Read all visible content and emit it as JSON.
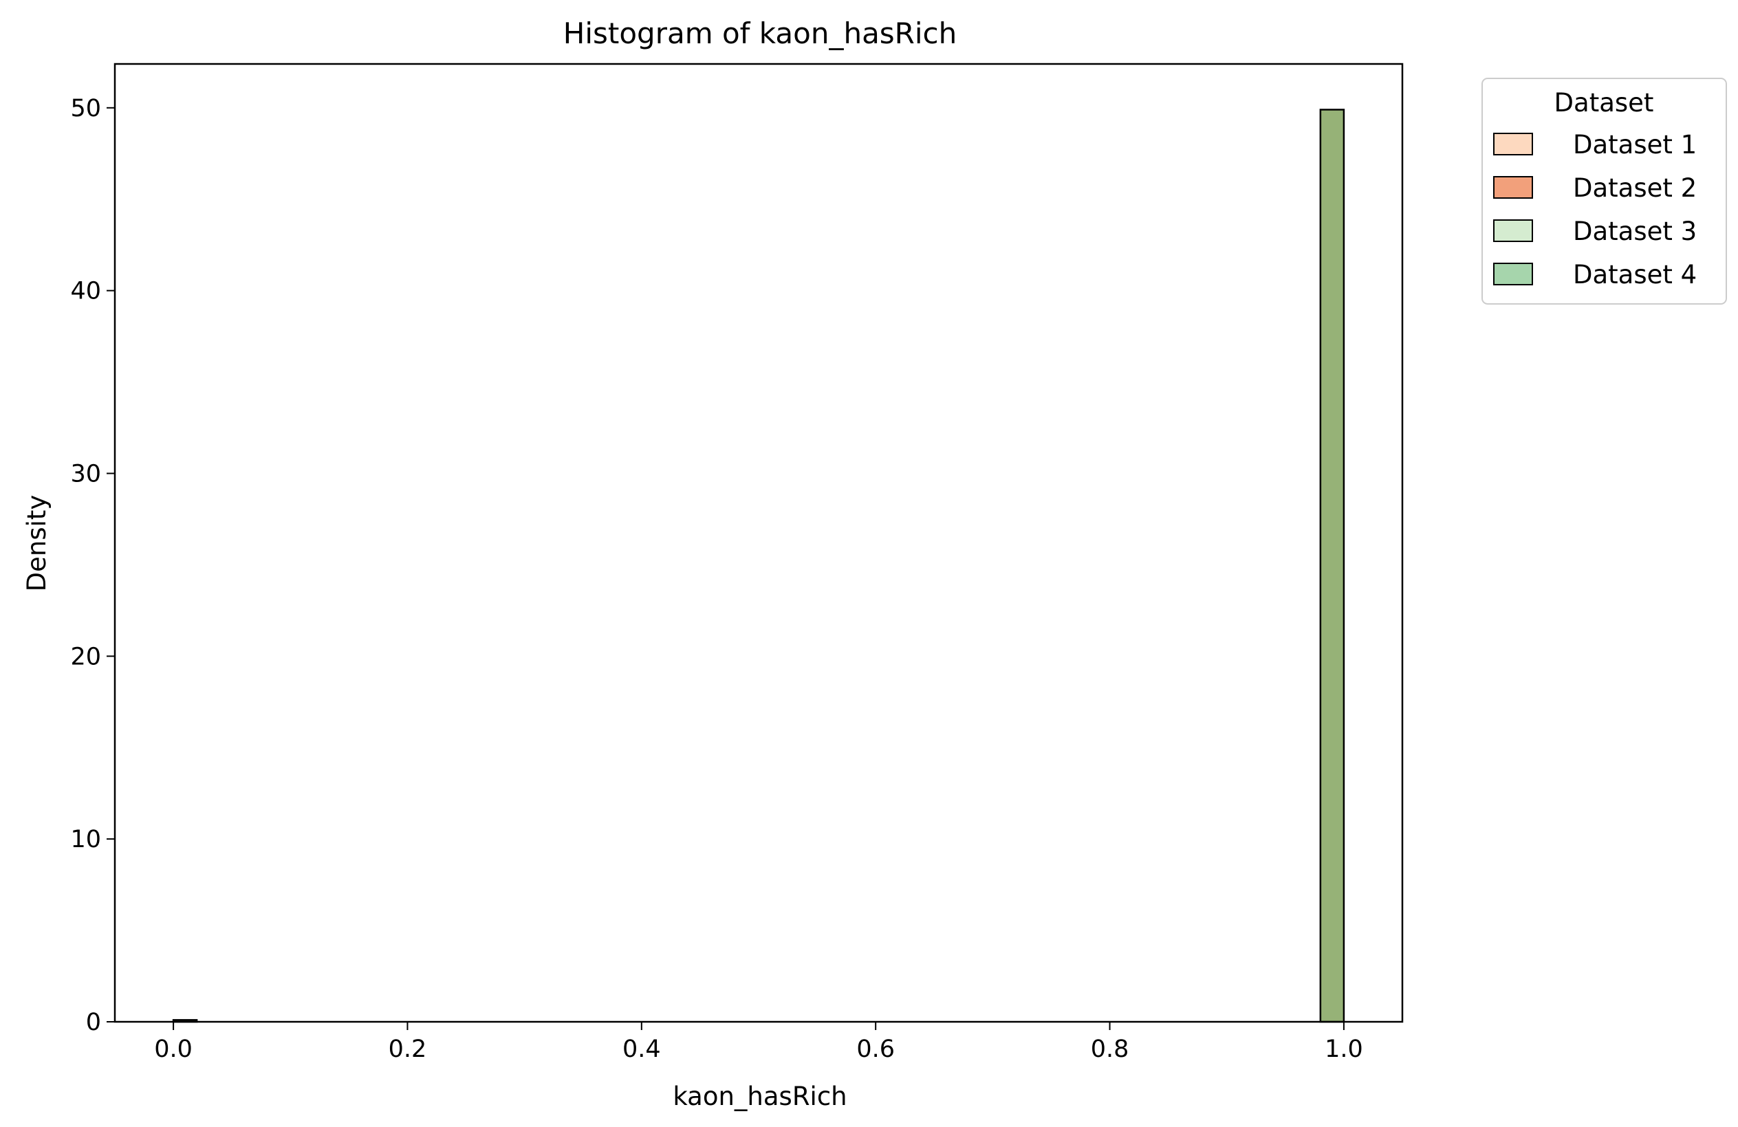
{
  "chart_data": {
    "type": "bar",
    "title": "Histogram of kaon_hasRich",
    "xlabel": "kaon_hasRich",
    "ylabel": "Density",
    "xlim": [
      -0.05,
      1.05
    ],
    "ylim": [
      0,
      52.4
    ],
    "xticks": [
      "0.0",
      "0.2",
      "0.4",
      "0.6",
      "0.8",
      "1.0"
    ],
    "yticks": [
      "0",
      "10",
      "20",
      "30",
      "40",
      "50"
    ],
    "grid": false,
    "bin_width": 0.02,
    "series": [
      {
        "name": "Dataset 1",
        "color": "#fdd9bf",
        "bins": [
          {
            "x0": 0.0,
            "x1": 0.02,
            "value": 0.1
          },
          {
            "x0": 0.98,
            "x1": 1.0,
            "value": 49.9
          }
        ]
      },
      {
        "name": "Dataset 2",
        "color": "#f2a07b",
        "bins": [
          {
            "x0": 0.0,
            "x1": 0.02,
            "value": 0.1
          },
          {
            "x0": 0.98,
            "x1": 1.0,
            "value": 49.9
          }
        ]
      },
      {
        "name": "Dataset 3",
        "color": "#d5ecd0",
        "bins": [
          {
            "x0": 0.0,
            "x1": 0.02,
            "value": 0.1
          },
          {
            "x0": 0.98,
            "x1": 1.0,
            "value": 49.9
          }
        ]
      },
      {
        "name": "Dataset 4",
        "color": "#a6d5ac",
        "bins": [
          {
            "x0": 0.0,
            "x1": 0.02,
            "value": 0.1
          },
          {
            "x0": 0.98,
            "x1": 1.0,
            "value": 49.9
          }
        ]
      }
    ],
    "overlap_color": "#96b277",
    "legend": {
      "title": "Dataset",
      "position": "outside-top-right"
    }
  }
}
